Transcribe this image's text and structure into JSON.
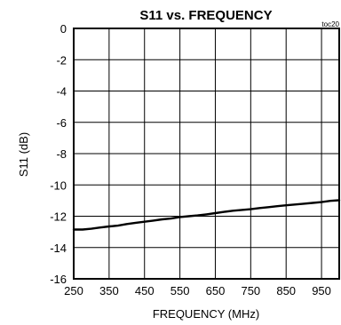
{
  "chart_data": {
    "type": "line",
    "title": "S11 vs. FREQUENCY",
    "tag": "toc20",
    "xlabel": "FREQUENCY (MHz)",
    "ylabel": "S11 (dB)",
    "xlim": [
      250,
      1000
    ],
    "ylim": [
      -16,
      0
    ],
    "xticks": [
      250,
      350,
      450,
      550,
      650,
      750,
      850,
      950
    ],
    "yticks": [
      0,
      -2,
      -4,
      -6,
      -8,
      -10,
      -12,
      -14,
      -16
    ],
    "grid": true,
    "series": [
      {
        "x": [
          250,
          275,
          300,
          325,
          350,
          375,
          400,
          425,
          450,
          475,
          500,
          525,
          550,
          575,
          600,
          625,
          650,
          675,
          700,
          725,
          750,
          775,
          800,
          825,
          850,
          875,
          900,
          925,
          950,
          975,
          1000
        ],
        "values": [
          -12.85,
          -12.85,
          -12.8,
          -12.72,
          -12.65,
          -12.6,
          -12.5,
          -12.42,
          -12.35,
          -12.28,
          -12.2,
          -12.15,
          -12.05,
          -12.0,
          -11.95,
          -11.88,
          -11.8,
          -11.72,
          -11.65,
          -11.6,
          -11.55,
          -11.48,
          -11.42,
          -11.36,
          -11.3,
          -11.25,
          -11.2,
          -11.15,
          -11.1,
          -11.02,
          -10.98
        ]
      }
    ]
  }
}
